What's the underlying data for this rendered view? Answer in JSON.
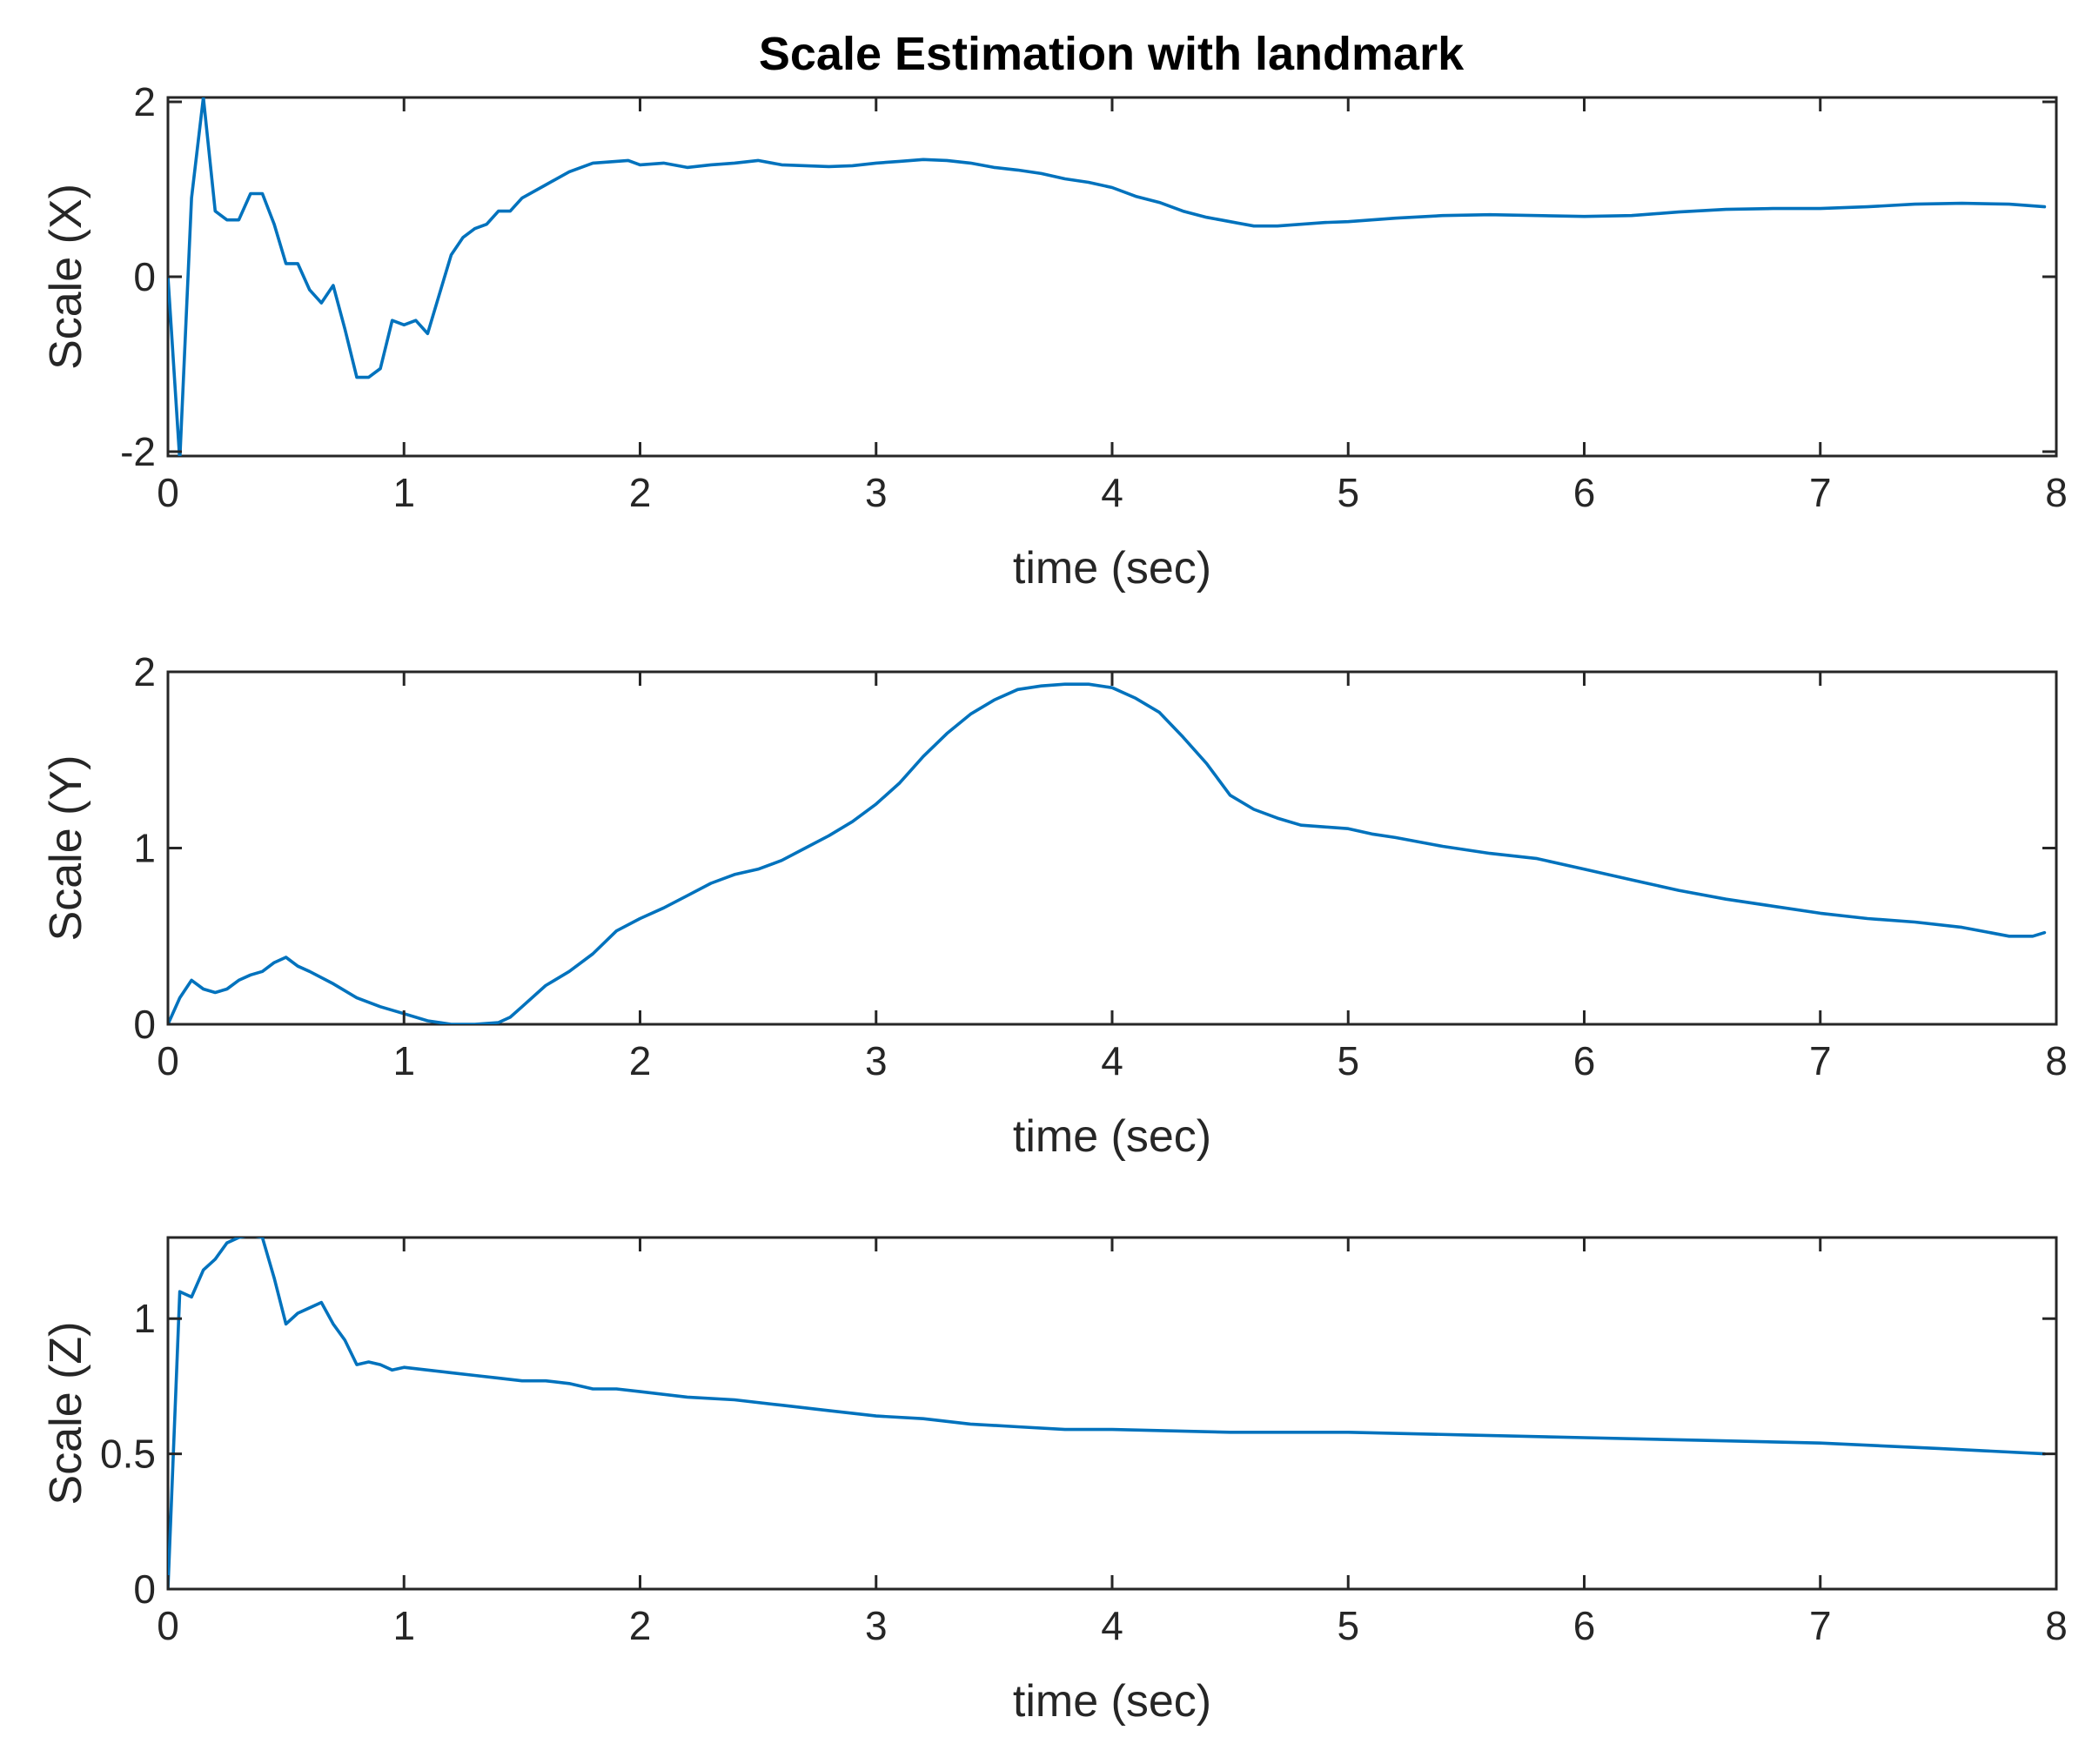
{
  "figure": {
    "title": "Scale Estimation with landmark",
    "line_color": "#0072BD"
  },
  "chart_data": [
    {
      "type": "line",
      "title": "Scale Estimation with landmark",
      "xlabel": "time (sec)",
      "ylabel": "Scale (X)",
      "xlim": [
        0,
        8
      ],
      "ylim": [
        -2.05,
        2.05
      ],
      "xticks": [
        0,
        1,
        2,
        3,
        4,
        5,
        6,
        7,
        8
      ],
      "yticks": [
        -2,
        0,
        2
      ],
      "ytick_labels": [
        "-2",
        "0",
        "2"
      ],
      "grid": false,
      "series": [
        {
          "name": "Scale (X)",
          "x": [
            0,
            0.05,
            0.1,
            0.15,
            0.2,
            0.25,
            0.3,
            0.35,
            0.4,
            0.45,
            0.5,
            0.55,
            0.6,
            0.65,
            0.7,
            0.75,
            0.8,
            0.85,
            0.9,
            0.95,
            1.0,
            1.05,
            1.1,
            1.15,
            1.2,
            1.25,
            1.3,
            1.35,
            1.4,
            1.45,
            1.5,
            1.6,
            1.7,
            1.8,
            1.9,
            1.95,
            2.0,
            2.1,
            2.2,
            2.3,
            2.4,
            2.5,
            2.6,
            2.7,
            2.8,
            2.9,
            3.0,
            3.1,
            3.2,
            3.3,
            3.4,
            3.5,
            3.6,
            3.7,
            3.8,
            3.9,
            4.0,
            4.1,
            4.2,
            4.3,
            4.4,
            4.5,
            4.6,
            4.7,
            4.8,
            4.9,
            5.0,
            5.2,
            5.4,
            5.6,
            5.8,
            6.0,
            6.2,
            6.4,
            6.6,
            6.8,
            7.0,
            7.2,
            7.4,
            7.6,
            7.8,
            7.95
          ],
          "y": [
            0.0,
            -2.1,
            0.9,
            2.05,
            0.75,
            0.65,
            0.65,
            0.95,
            0.95,
            0.6,
            0.15,
            0.15,
            -0.15,
            -0.3,
            -0.1,
            -0.6,
            -1.15,
            -1.15,
            -1.05,
            -0.5,
            -0.55,
            -0.5,
            -0.65,
            -0.2,
            0.25,
            0.45,
            0.55,
            0.6,
            0.75,
            0.75,
            0.9,
            1.05,
            1.2,
            1.3,
            1.32,
            1.33,
            1.28,
            1.3,
            1.25,
            1.28,
            1.3,
            1.33,
            1.28,
            1.27,
            1.26,
            1.27,
            1.3,
            1.32,
            1.34,
            1.33,
            1.3,
            1.25,
            1.22,
            1.18,
            1.12,
            1.08,
            1.02,
            0.92,
            0.85,
            0.75,
            0.68,
            0.63,
            0.58,
            0.58,
            0.6,
            0.62,
            0.63,
            0.67,
            0.7,
            0.71,
            0.7,
            0.69,
            0.7,
            0.74,
            0.77,
            0.78,
            0.78,
            0.8,
            0.83,
            0.84,
            0.83,
            0.8
          ]
        }
      ]
    },
    {
      "type": "line",
      "title": "",
      "xlabel": "time (sec)",
      "ylabel": "Scale (Y)",
      "xlim": [
        0,
        8
      ],
      "ylim": [
        0,
        2
      ],
      "xticks": [
        0,
        1,
        2,
        3,
        4,
        5,
        6,
        7,
        8
      ],
      "yticks": [
        0,
        1,
        2
      ],
      "ytick_labels": [
        "0",
        "1",
        "2"
      ],
      "grid": false,
      "series": [
        {
          "name": "Scale (Y)",
          "x": [
            0,
            0.05,
            0.1,
            0.15,
            0.2,
            0.25,
            0.3,
            0.35,
            0.4,
            0.45,
            0.5,
            0.55,
            0.6,
            0.7,
            0.8,
            0.9,
            1.0,
            1.1,
            1.2,
            1.3,
            1.4,
            1.45,
            1.5,
            1.6,
            1.7,
            1.8,
            1.9,
            2.0,
            2.1,
            2.2,
            2.3,
            2.4,
            2.5,
            2.6,
            2.7,
            2.8,
            2.9,
            3.0,
            3.1,
            3.2,
            3.3,
            3.4,
            3.5,
            3.6,
            3.7,
            3.8,
            3.9,
            4.0,
            4.1,
            4.2,
            4.3,
            4.4,
            4.5,
            4.6,
            4.7,
            4.8,
            4.9,
            5.0,
            5.1,
            5.2,
            5.4,
            5.6,
            5.8,
            6.0,
            6.2,
            6.4,
            6.6,
            6.8,
            7.0,
            7.2,
            7.4,
            7.6,
            7.8,
            7.9,
            7.95
          ],
          "y": [
            0.0,
            0.15,
            0.25,
            0.2,
            0.18,
            0.2,
            0.25,
            0.28,
            0.3,
            0.35,
            0.38,
            0.33,
            0.3,
            0.23,
            0.15,
            0.1,
            0.06,
            0.02,
            0.0,
            0.0,
            0.01,
            0.04,
            0.1,
            0.22,
            0.3,
            0.4,
            0.53,
            0.6,
            0.66,
            0.73,
            0.8,
            0.85,
            0.88,
            0.93,
            1.0,
            1.07,
            1.15,
            1.25,
            1.37,
            1.52,
            1.65,
            1.76,
            1.84,
            1.9,
            1.92,
            1.93,
            1.93,
            1.91,
            1.85,
            1.77,
            1.63,
            1.48,
            1.3,
            1.22,
            1.17,
            1.13,
            1.12,
            1.11,
            1.08,
            1.06,
            1.01,
            0.97,
            0.94,
            0.88,
            0.82,
            0.76,
            0.71,
            0.67,
            0.63,
            0.6,
            0.58,
            0.55,
            0.5,
            0.5,
            0.52
          ]
        }
      ]
    },
    {
      "type": "line",
      "title": "",
      "xlabel": "time (sec)",
      "ylabel": "Scale (Z)",
      "xlim": [
        0,
        8
      ],
      "ylim": [
        0,
        1.3
      ],
      "xticks": [
        0,
        1,
        2,
        3,
        4,
        5,
        6,
        7,
        8
      ],
      "yticks": [
        0,
        0.5,
        1
      ],
      "ytick_labels": [
        "0",
        "0.5",
        "1"
      ],
      "grid": false,
      "series": [
        {
          "name": "Scale (Z)",
          "x": [
            0,
            0.05,
            0.1,
            0.15,
            0.2,
            0.25,
            0.3,
            0.35,
            0.4,
            0.45,
            0.5,
            0.55,
            0.6,
            0.65,
            0.7,
            0.75,
            0.8,
            0.85,
            0.9,
            0.95,
            1.0,
            1.1,
            1.2,
            1.3,
            1.4,
            1.5,
            1.6,
            1.7,
            1.8,
            1.9,
            2.0,
            2.2,
            2.4,
            2.6,
            2.8,
            3.0,
            3.2,
            3.4,
            3.6,
            3.8,
            4.0,
            4.5,
            5.0,
            5.5,
            6.0,
            6.5,
            7.0,
            7.5,
            7.95
          ],
          "y": [
            0.0,
            1.1,
            1.08,
            1.18,
            1.22,
            1.28,
            1.3,
            1.31,
            1.3,
            1.15,
            0.98,
            1.02,
            1.04,
            1.06,
            0.98,
            0.92,
            0.83,
            0.84,
            0.83,
            0.81,
            0.82,
            0.81,
            0.8,
            0.79,
            0.78,
            0.77,
            0.77,
            0.76,
            0.74,
            0.74,
            0.73,
            0.71,
            0.7,
            0.68,
            0.66,
            0.64,
            0.63,
            0.61,
            0.6,
            0.59,
            0.59,
            0.58,
            0.58,
            0.57,
            0.56,
            0.55,
            0.54,
            0.52,
            0.5
          ]
        }
      ]
    }
  ]
}
